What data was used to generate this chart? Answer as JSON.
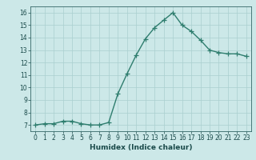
{
  "x": [
    0,
    1,
    2,
    3,
    4,
    5,
    6,
    7,
    8,
    9,
    10,
    11,
    12,
    13,
    14,
    15,
    16,
    17,
    18,
    19,
    20,
    21,
    22,
    23
  ],
  "y": [
    7.0,
    7.1,
    7.1,
    7.3,
    7.3,
    7.1,
    7.0,
    7.0,
    7.2,
    9.5,
    11.1,
    12.6,
    13.9,
    14.8,
    15.4,
    16.0,
    15.0,
    14.5,
    13.8,
    13.0,
    12.8,
    12.7,
    12.7,
    12.5
  ],
  "line_color": "#2e7d6e",
  "marker": "+",
  "markersize": 4,
  "linewidth": 1.0,
  "xlabel": "Humidex (Indice chaleur)",
  "xlim": [
    -0.5,
    23.5
  ],
  "ylim": [
    6.5,
    16.5
  ],
  "yticks": [
    7,
    8,
    9,
    10,
    11,
    12,
    13,
    14,
    15,
    16
  ],
  "xticks": [
    0,
    1,
    2,
    3,
    4,
    5,
    6,
    7,
    8,
    9,
    10,
    11,
    12,
    13,
    14,
    15,
    16,
    17,
    18,
    19,
    20,
    21,
    22,
    23
  ],
  "bg_color": "#cce8e8",
  "grid_color": "#aacfcf",
  "axis_color": "#336666",
  "tick_color": "#1a4a4a",
  "label_fontsize": 6.5,
  "tick_fontsize": 5.5
}
